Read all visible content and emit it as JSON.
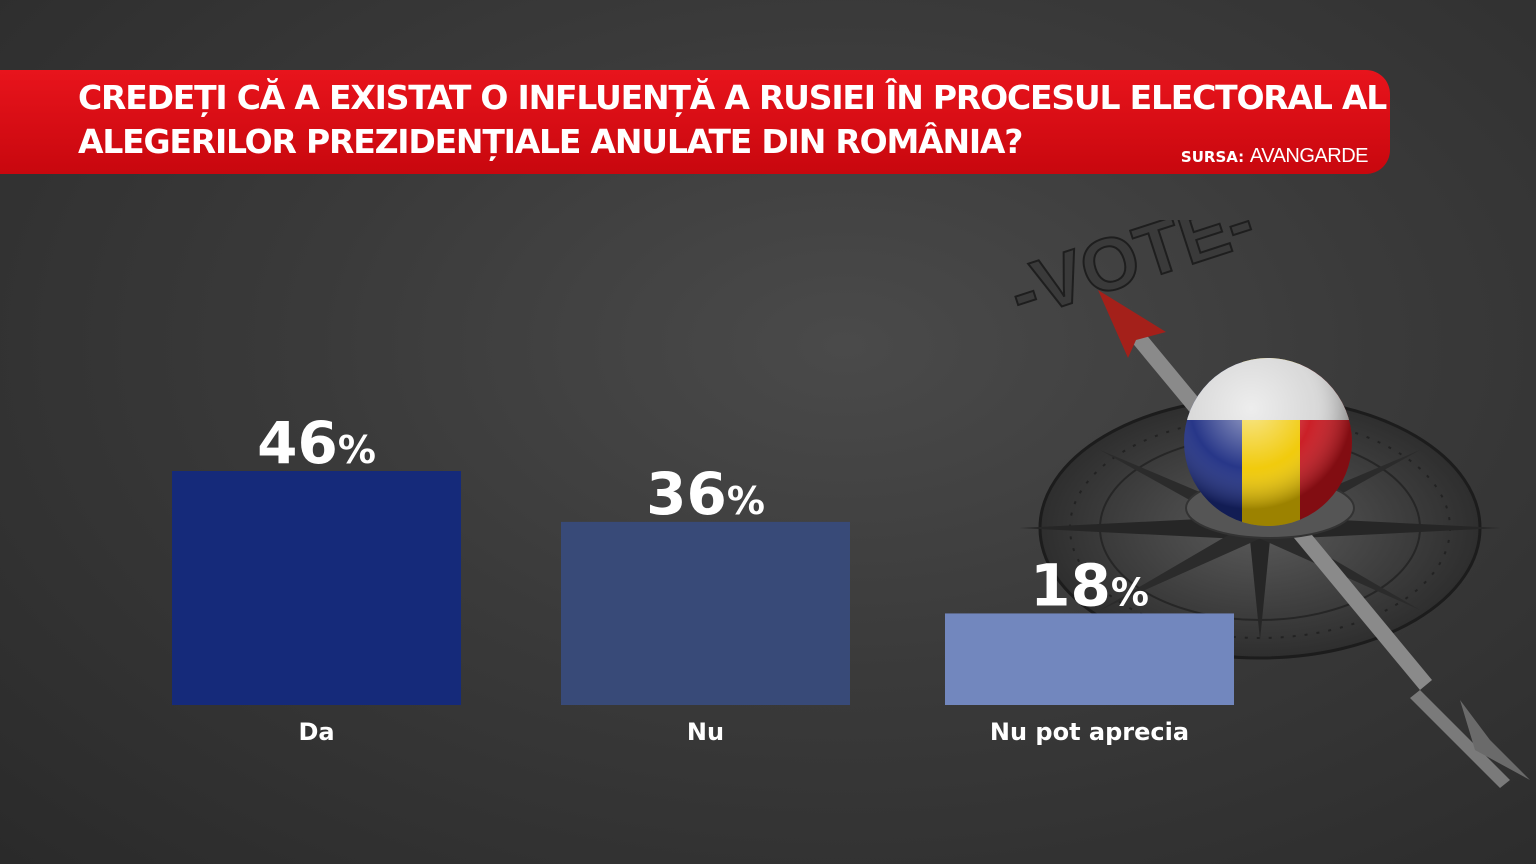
{
  "header": {
    "line1": "CREDEȚI CĂ A EXISTAT O INFLUENȚĂ A RUSIEI ÎN PROCESUL ELECTORAL AL",
    "line2": "ALEGERILOR PREZIDENȚIALE ANULATE DIN ROMÂNIA?",
    "source_label": "SURSA:",
    "source_name": "AVANGARDE",
    "banner_color": "#d90b13"
  },
  "decor": {
    "vote_label": "-VOTE-"
  },
  "chart_data": {
    "type": "bar",
    "title": "CREDEȚI CĂ A EXISTAT O INFLUENȚĂ A RUSIEI ÎN PROCESUL ELECTORAL AL ALEGERILOR PREZIDENȚIALE ANULATE DIN ROMÂNIA?",
    "categories": [
      "Da",
      "Nu",
      "Nu pot aprecia"
    ],
    "values": [
      46,
      36,
      18
    ],
    "value_suffix": "%",
    "colors": [
      "#152a7a",
      "#384a78",
      "#7287be"
    ],
    "ylim": [
      0,
      46
    ],
    "grid": false,
    "legend": "none"
  }
}
